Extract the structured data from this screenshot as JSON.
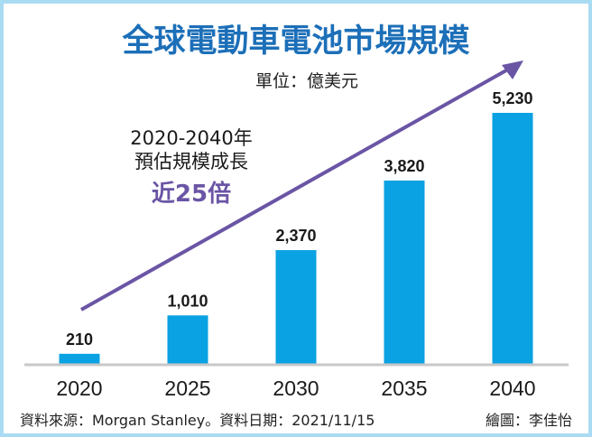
{
  "chart_data": {
    "type": "bar",
    "title": "全球電動車電池市場規模",
    "unit": "單位：億美元",
    "categories": [
      "2020",
      "2025",
      "2030",
      "2035",
      "2040"
    ],
    "values": [
      210,
      1010,
      2370,
      3820,
      5230
    ],
    "value_labels": [
      "210",
      "1,010",
      "2,370",
      "3,820",
      "5,230"
    ],
    "ylim": [
      0,
      5230
    ],
    "xlabel": "",
    "ylabel": "",
    "bar_color": "#0aa2e2",
    "annotation": {
      "line1": "2020-2040年",
      "line2": "預估規模成長",
      "highlight": "近25倍",
      "arrow_color": "#6a55a5"
    },
    "source": "資料來源：Morgan Stanley。資料日期：2021/11/15",
    "credit": "繪圖：李佳怡"
  }
}
